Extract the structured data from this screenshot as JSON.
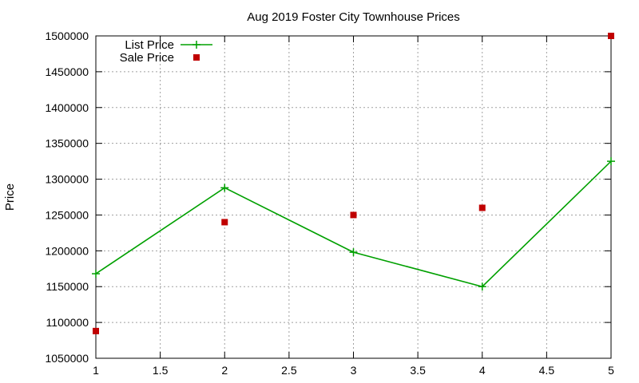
{
  "chart_data": {
    "type": "line",
    "title": "Aug 2019 Foster City Townhouse Prices",
    "xlabel": "",
    "ylabel": "Price",
    "xlim": [
      1,
      5
    ],
    "ylim": [
      1050000,
      1500000
    ],
    "xticks": [
      1,
      1.5,
      2,
      2.5,
      3,
      3.5,
      4,
      4.5,
      5
    ],
    "xtick_labels": [
      "1",
      "1.5",
      "2",
      "2.5",
      "3",
      "3.5",
      "4",
      "4.5",
      "5"
    ],
    "yticks": [
      1050000,
      1100000,
      1150000,
      1200000,
      1250000,
      1300000,
      1350000,
      1400000,
      1450000,
      1500000
    ],
    "ytick_labels": [
      "1050000",
      "1100000",
      "1150000",
      "1200000",
      "1250000",
      "1300000",
      "1350000",
      "1400000",
      "1450000",
      "1500000"
    ],
    "grid": true,
    "legend_position": "top-left",
    "series": [
      {
        "name": "List Price",
        "style": "line+cross",
        "color": "#00a000",
        "x": [
          1,
          2,
          3,
          4,
          5
        ],
        "values": [
          1168000,
          1288000,
          1198000,
          1150000,
          1325000
        ]
      },
      {
        "name": "Sale Price",
        "style": "square",
        "color": "#c00000",
        "x": [
          1,
          2,
          3,
          4,
          5
        ],
        "values": [
          1088000,
          1240000,
          1250000,
          1260000,
          1500000
        ]
      }
    ]
  }
}
